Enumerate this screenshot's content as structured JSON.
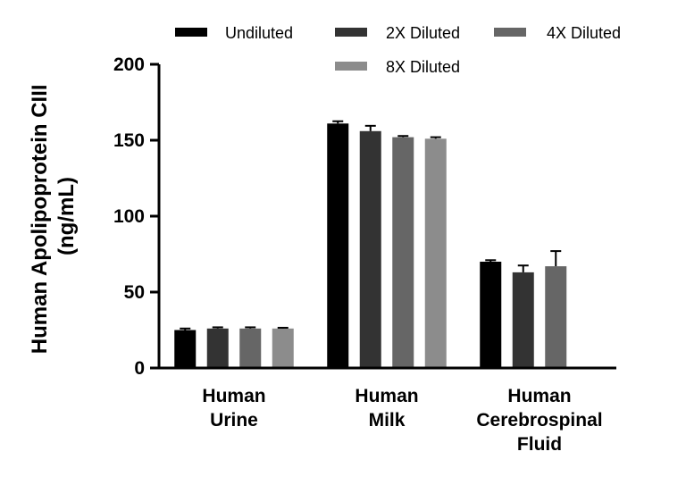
{
  "chart_data": {
    "type": "bar",
    "categories": [
      [
        "Human",
        "Urine"
      ],
      [
        "Human",
        "Milk"
      ],
      [
        "Human",
        "Cerebrospinal",
        "Fluid"
      ]
    ],
    "series": [
      {
        "name": "Undiluted",
        "color": "#000000",
        "values": [
          25,
          161,
          70
        ],
        "errors": [
          1,
          1.5,
          1
        ]
      },
      {
        "name": "2X Diluted",
        "color": "#333333",
        "values": [
          26,
          156,
          63
        ],
        "errors": [
          0.8,
          3.5,
          4.5
        ]
      },
      {
        "name": "4X Diluted",
        "color": "#666666",
        "values": [
          26,
          152,
          67
        ],
        "errors": [
          0.8,
          0.8,
          10
        ]
      },
      {
        "name": "8X Diluted",
        "color": "#8c8c8c",
        "values": [
          26,
          151,
          null
        ],
        "errors": [
          0.5,
          1,
          null
        ]
      }
    ],
    "ylabel": [
      "Human Apolipoprotein CIII",
      "(ng/mL)"
    ],
    "ylim": [
      0,
      200
    ],
    "yticks": [
      0,
      50,
      100,
      150,
      200
    ],
    "legend_position": "top",
    "grid": false
  }
}
